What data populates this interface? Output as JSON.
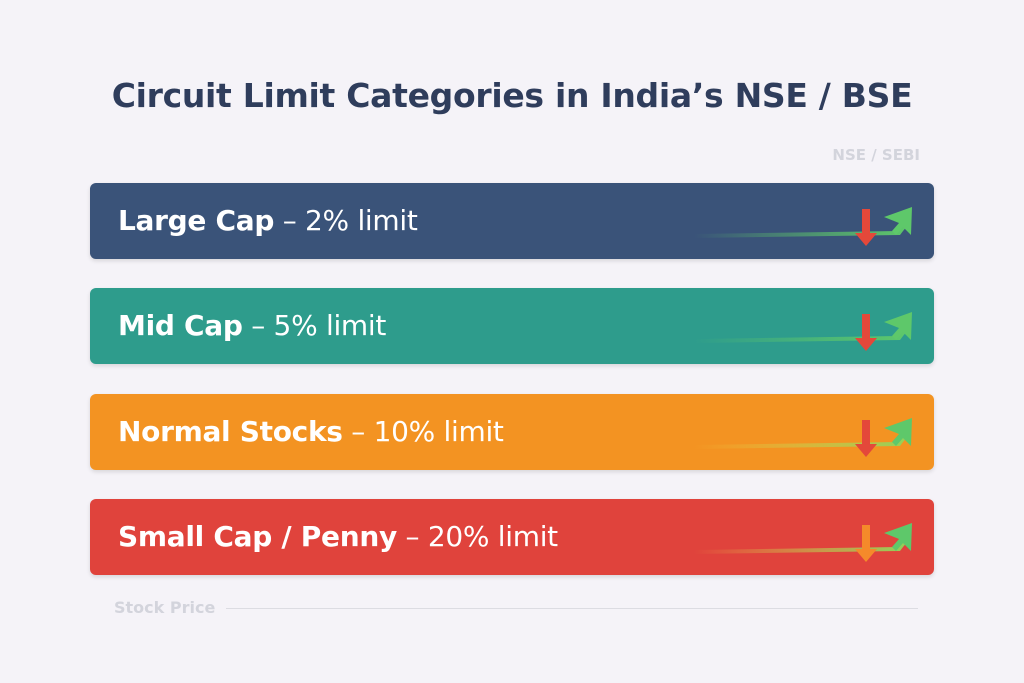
{
  "title": "Circuit Limit Categories in India’s NSE / BSE",
  "source": "NSE / SEBI",
  "categories": [
    {
      "name": "Large Cap",
      "limit": "– 2% limit",
      "limit_percent": 2,
      "color": "#3a5379",
      "trail_color": "#5ec86a",
      "down_color": "#e4483a"
    },
    {
      "name": "Mid Cap",
      "limit": "– 5% limit",
      "limit_percent": 5,
      "color": "#2e9c8c",
      "trail_color": "#5ec86a",
      "down_color": "#e4483a"
    },
    {
      "name": "Normal Stocks",
      "limit": "– 10% limit",
      "limit_percent": 10,
      "color": "#f39322",
      "trail_color": "#f2d84a",
      "down_color": "#e4483a"
    },
    {
      "name": "Small Cap / Penny",
      "limit": "– 20% limit",
      "limit_percent": 20,
      "color": "#e0433c",
      "trail_color": "#f2d84a",
      "down_color": "#f58a2a"
    }
  ],
  "icons": {
    "up": "trend-up-arrow-icon",
    "down": "down-arrow-icon"
  },
  "axis_label": "Stock Price"
}
